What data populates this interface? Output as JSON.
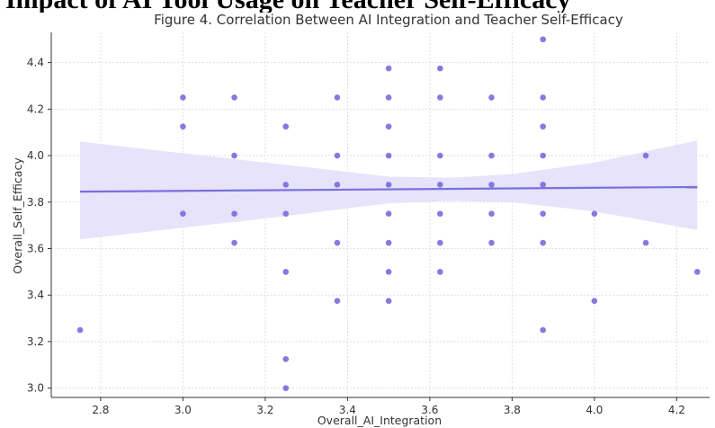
{
  "page_heading_fragment": "Impact of AI Tool Usage on Teacher Self-Efficacy",
  "chart_data": {
    "type": "scatter",
    "title": "Figure 4. Correlation Between AI Integration and Teacher Self-Efficacy",
    "xlabel": "Overall_AI_Integration",
    "ylabel": "Overall_Self_Efficacy",
    "xlim": [
      2.68,
      4.28
    ],
    "ylim": [
      2.96,
      4.53
    ],
    "xticks": [
      2.8,
      3.0,
      3.2,
      3.4,
      3.6,
      3.8,
      4.0,
      4.2
    ],
    "yticks": [
      3.0,
      3.2,
      3.4,
      3.6,
      3.8,
      4.0,
      4.2,
      4.4
    ],
    "grid": true,
    "point_color": "#7b6fdc",
    "line_color": "#7b6fdc",
    "band_color": "#e6e3fa",
    "points": [
      [
        2.75,
        3.25
      ],
      [
        3.0,
        4.25
      ],
      [
        3.0,
        4.125
      ],
      [
        3.0,
        3.75
      ],
      [
        3.125,
        4.25
      ],
      [
        3.125,
        4.0
      ],
      [
        3.125,
        3.75
      ],
      [
        3.125,
        3.625
      ],
      [
        3.25,
        4.125
      ],
      [
        3.25,
        3.875
      ],
      [
        3.25,
        3.75
      ],
      [
        3.25,
        3.5
      ],
      [
        3.25,
        3.125
      ],
      [
        3.25,
        3.0
      ],
      [
        3.375,
        4.25
      ],
      [
        3.375,
        4.0
      ],
      [
        3.375,
        3.875
      ],
      [
        3.375,
        3.625
      ],
      [
        3.375,
        3.375
      ],
      [
        3.5,
        4.375
      ],
      [
        3.5,
        4.25
      ],
      [
        3.5,
        4.125
      ],
      [
        3.5,
        4.0
      ],
      [
        3.5,
        3.875
      ],
      [
        3.5,
        3.75
      ],
      [
        3.5,
        3.625
      ],
      [
        3.5,
        3.5
      ],
      [
        3.5,
        3.375
      ],
      [
        3.625,
        4.375
      ],
      [
        3.625,
        4.25
      ],
      [
        3.625,
        4.0
      ],
      [
        3.625,
        3.875
      ],
      [
        3.625,
        3.75
      ],
      [
        3.625,
        3.625
      ],
      [
        3.625,
        3.5
      ],
      [
        3.75,
        4.25
      ],
      [
        3.75,
        4.0
      ],
      [
        3.75,
        3.875
      ],
      [
        3.75,
        3.75
      ],
      [
        3.75,
        3.625
      ],
      [
        3.875,
        4.5
      ],
      [
        3.875,
        4.25
      ],
      [
        3.875,
        4.125
      ],
      [
        3.875,
        4.0
      ],
      [
        3.875,
        3.875
      ],
      [
        3.875,
        3.75
      ],
      [
        3.875,
        3.625
      ],
      [
        3.875,
        3.25
      ],
      [
        4.0,
        3.75
      ],
      [
        4.0,
        3.375
      ],
      [
        4.125,
        4.0
      ],
      [
        4.125,
        3.625
      ],
      [
        4.25,
        3.5
      ]
    ],
    "regression": {
      "x": [
        2.75,
        4.25
      ],
      "y": [
        3.845,
        3.865
      ]
    },
    "confidence_band": {
      "x": [
        2.75,
        3.0,
        3.25,
        3.5,
        3.65,
        3.8,
        4.0,
        4.25
      ],
      "upper": [
        4.06,
        4.01,
        3.96,
        3.91,
        3.905,
        3.92,
        3.97,
        4.065
      ],
      "lower": [
        3.64,
        3.69,
        3.74,
        3.795,
        3.805,
        3.8,
        3.76,
        3.68
      ]
    }
  }
}
